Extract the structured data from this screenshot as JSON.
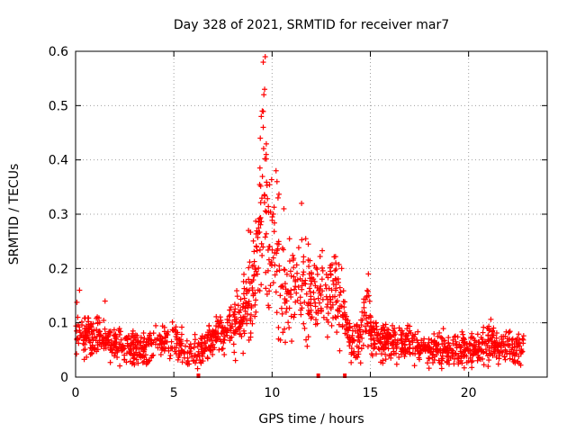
{
  "chart_data": {
    "type": "scatter",
    "title": "Day 328 of 2021, SRMTID for receiver mar7",
    "xlabel": "GPS time / hours",
    "ylabel": "SRMTID / TECUs",
    "xlim": [
      0,
      24
    ],
    "ylim": [
      0,
      0.6
    ],
    "xticks": [
      0,
      5,
      10,
      15,
      20
    ],
    "yticks": [
      0,
      0.1,
      0.2,
      0.3,
      0.4,
      0.5,
      0.6
    ],
    "grid": true,
    "marker": "+",
    "color": "#ff0000",
    "x_markers": [
      6.25,
      12.35,
      13.7
    ],
    "sample_count": 1650,
    "series": [
      {
        "name": "SRMTID",
        "envelope": [
          {
            "t": 0.0,
            "mean": 0.085,
            "spread": 0.035
          },
          {
            "t": 0.5,
            "mean": 0.075,
            "spread": 0.03
          },
          {
            "t": 1.0,
            "mean": 0.072,
            "spread": 0.03
          },
          {
            "t": 1.5,
            "mean": 0.068,
            "spread": 0.03
          },
          {
            "t": 2.0,
            "mean": 0.062,
            "spread": 0.025
          },
          {
            "t": 3.0,
            "mean": 0.052,
            "spread": 0.025
          },
          {
            "t": 4.0,
            "mean": 0.058,
            "spread": 0.025
          },
          {
            "t": 4.5,
            "mean": 0.068,
            "spread": 0.03
          },
          {
            "t": 5.0,
            "mean": 0.065,
            "spread": 0.03
          },
          {
            "t": 5.5,
            "mean": 0.05,
            "spread": 0.025
          },
          {
            "t": 6.0,
            "mean": 0.045,
            "spread": 0.022
          },
          {
            "t": 6.5,
            "mean": 0.06,
            "spread": 0.025
          },
          {
            "t": 7.0,
            "mean": 0.072,
            "spread": 0.028
          },
          {
            "t": 7.5,
            "mean": 0.078,
            "spread": 0.03
          },
          {
            "t": 8.0,
            "mean": 0.09,
            "spread": 0.035
          },
          {
            "t": 8.5,
            "mean": 0.12,
            "spread": 0.05
          },
          {
            "t": 9.0,
            "mean": 0.16,
            "spread": 0.07
          },
          {
            "t": 9.3,
            "mean": 0.23,
            "spread": 0.1
          },
          {
            "t": 9.6,
            "mean": 0.35,
            "spread": 0.15
          },
          {
            "t": 9.9,
            "mean": 0.24,
            "spread": 0.12
          },
          {
            "t": 10.2,
            "mean": 0.2,
            "spread": 0.1
          },
          {
            "t": 10.6,
            "mean": 0.16,
            "spread": 0.08
          },
          {
            "t": 11.0,
            "mean": 0.15,
            "spread": 0.07
          },
          {
            "t": 11.5,
            "mean": 0.17,
            "spread": 0.07
          },
          {
            "t": 12.0,
            "mean": 0.16,
            "spread": 0.07
          },
          {
            "t": 12.5,
            "mean": 0.15,
            "spread": 0.06
          },
          {
            "t": 13.0,
            "mean": 0.16,
            "spread": 0.06
          },
          {
            "t": 13.5,
            "mean": 0.14,
            "spread": 0.06
          },
          {
            "t": 14.0,
            "mean": 0.07,
            "spread": 0.03
          },
          {
            "t": 14.5,
            "mean": 0.08,
            "spread": 0.035
          },
          {
            "t": 14.8,
            "mean": 0.11,
            "spread": 0.05
          },
          {
            "t": 15.2,
            "mean": 0.07,
            "spread": 0.03
          },
          {
            "t": 16.0,
            "mean": 0.065,
            "spread": 0.025
          },
          {
            "t": 17.0,
            "mean": 0.06,
            "spread": 0.025
          },
          {
            "t": 18.0,
            "mean": 0.055,
            "spread": 0.025
          },
          {
            "t": 19.0,
            "mean": 0.05,
            "spread": 0.025
          },
          {
            "t": 20.0,
            "mean": 0.05,
            "spread": 0.025
          },
          {
            "t": 21.0,
            "mean": 0.065,
            "spread": 0.03
          },
          {
            "t": 22.0,
            "mean": 0.055,
            "spread": 0.025
          },
          {
            "t": 22.8,
            "mean": 0.055,
            "spread": 0.025
          }
        ],
        "peaks": [
          {
            "x": 9.65,
            "y": 0.59
          },
          {
            "x": 9.55,
            "y": 0.58
          },
          {
            "x": 9.62,
            "y": 0.53
          },
          {
            "x": 9.58,
            "y": 0.52
          },
          {
            "x": 9.5,
            "y": 0.49
          },
          {
            "x": 9.45,
            "y": 0.48
          },
          {
            "x": 9.55,
            "y": 0.46
          },
          {
            "x": 9.4,
            "y": 0.44
          },
          {
            "x": 9.7,
            "y": 0.41
          },
          {
            "x": 10.2,
            "y": 0.38
          },
          {
            "x": 10.25,
            "y": 0.36
          },
          {
            "x": 10.3,
            "y": 0.33
          },
          {
            "x": 10.6,
            "y": 0.31
          },
          {
            "x": 11.5,
            "y": 0.32
          },
          {
            "x": 8.8,
            "y": 0.27
          },
          {
            "x": 1.5,
            "y": 0.14
          },
          {
            "x": 0.2,
            "y": 0.16
          },
          {
            "x": 14.9,
            "y": 0.19
          }
        ]
      }
    ]
  }
}
